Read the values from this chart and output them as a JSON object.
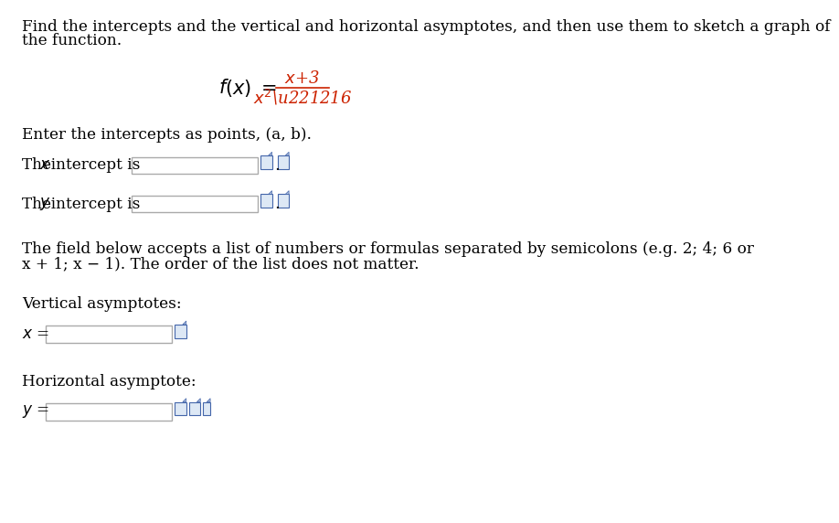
{
  "bg_color": "#ffffff",
  "text_color": "#000000",
  "instruction_line1": "Find the intercepts and the vertical and horizontal asymptotes, and then use them to sketch a graph of",
  "instruction_line2": "the function.",
  "intercept_label": "Enter the intercepts as points, (a, b).",
  "x_intercept_label": "The x-intercept is",
  "y_intercept_label": "The y-intercept is",
  "field_note_line1": "The field below accepts a list of numbers or formulas separated by semicolons (e.g. 2; 4; 6 or",
  "field_note_line2": "x + 1; x − 1). The order of the list does not matter.",
  "vertical_label": "Vertical asymptotes:",
  "x_equals": "x =",
  "horizontal_label": "Horizontal asymptote:",
  "y_equals": "y =",
  "box_edge_color": "#aaaaaa",
  "icon_blue": "#4466aa",
  "icon_fill": "#dde8f5",
  "fraction_color": "#cc2200",
  "dot_color": "#000000"
}
